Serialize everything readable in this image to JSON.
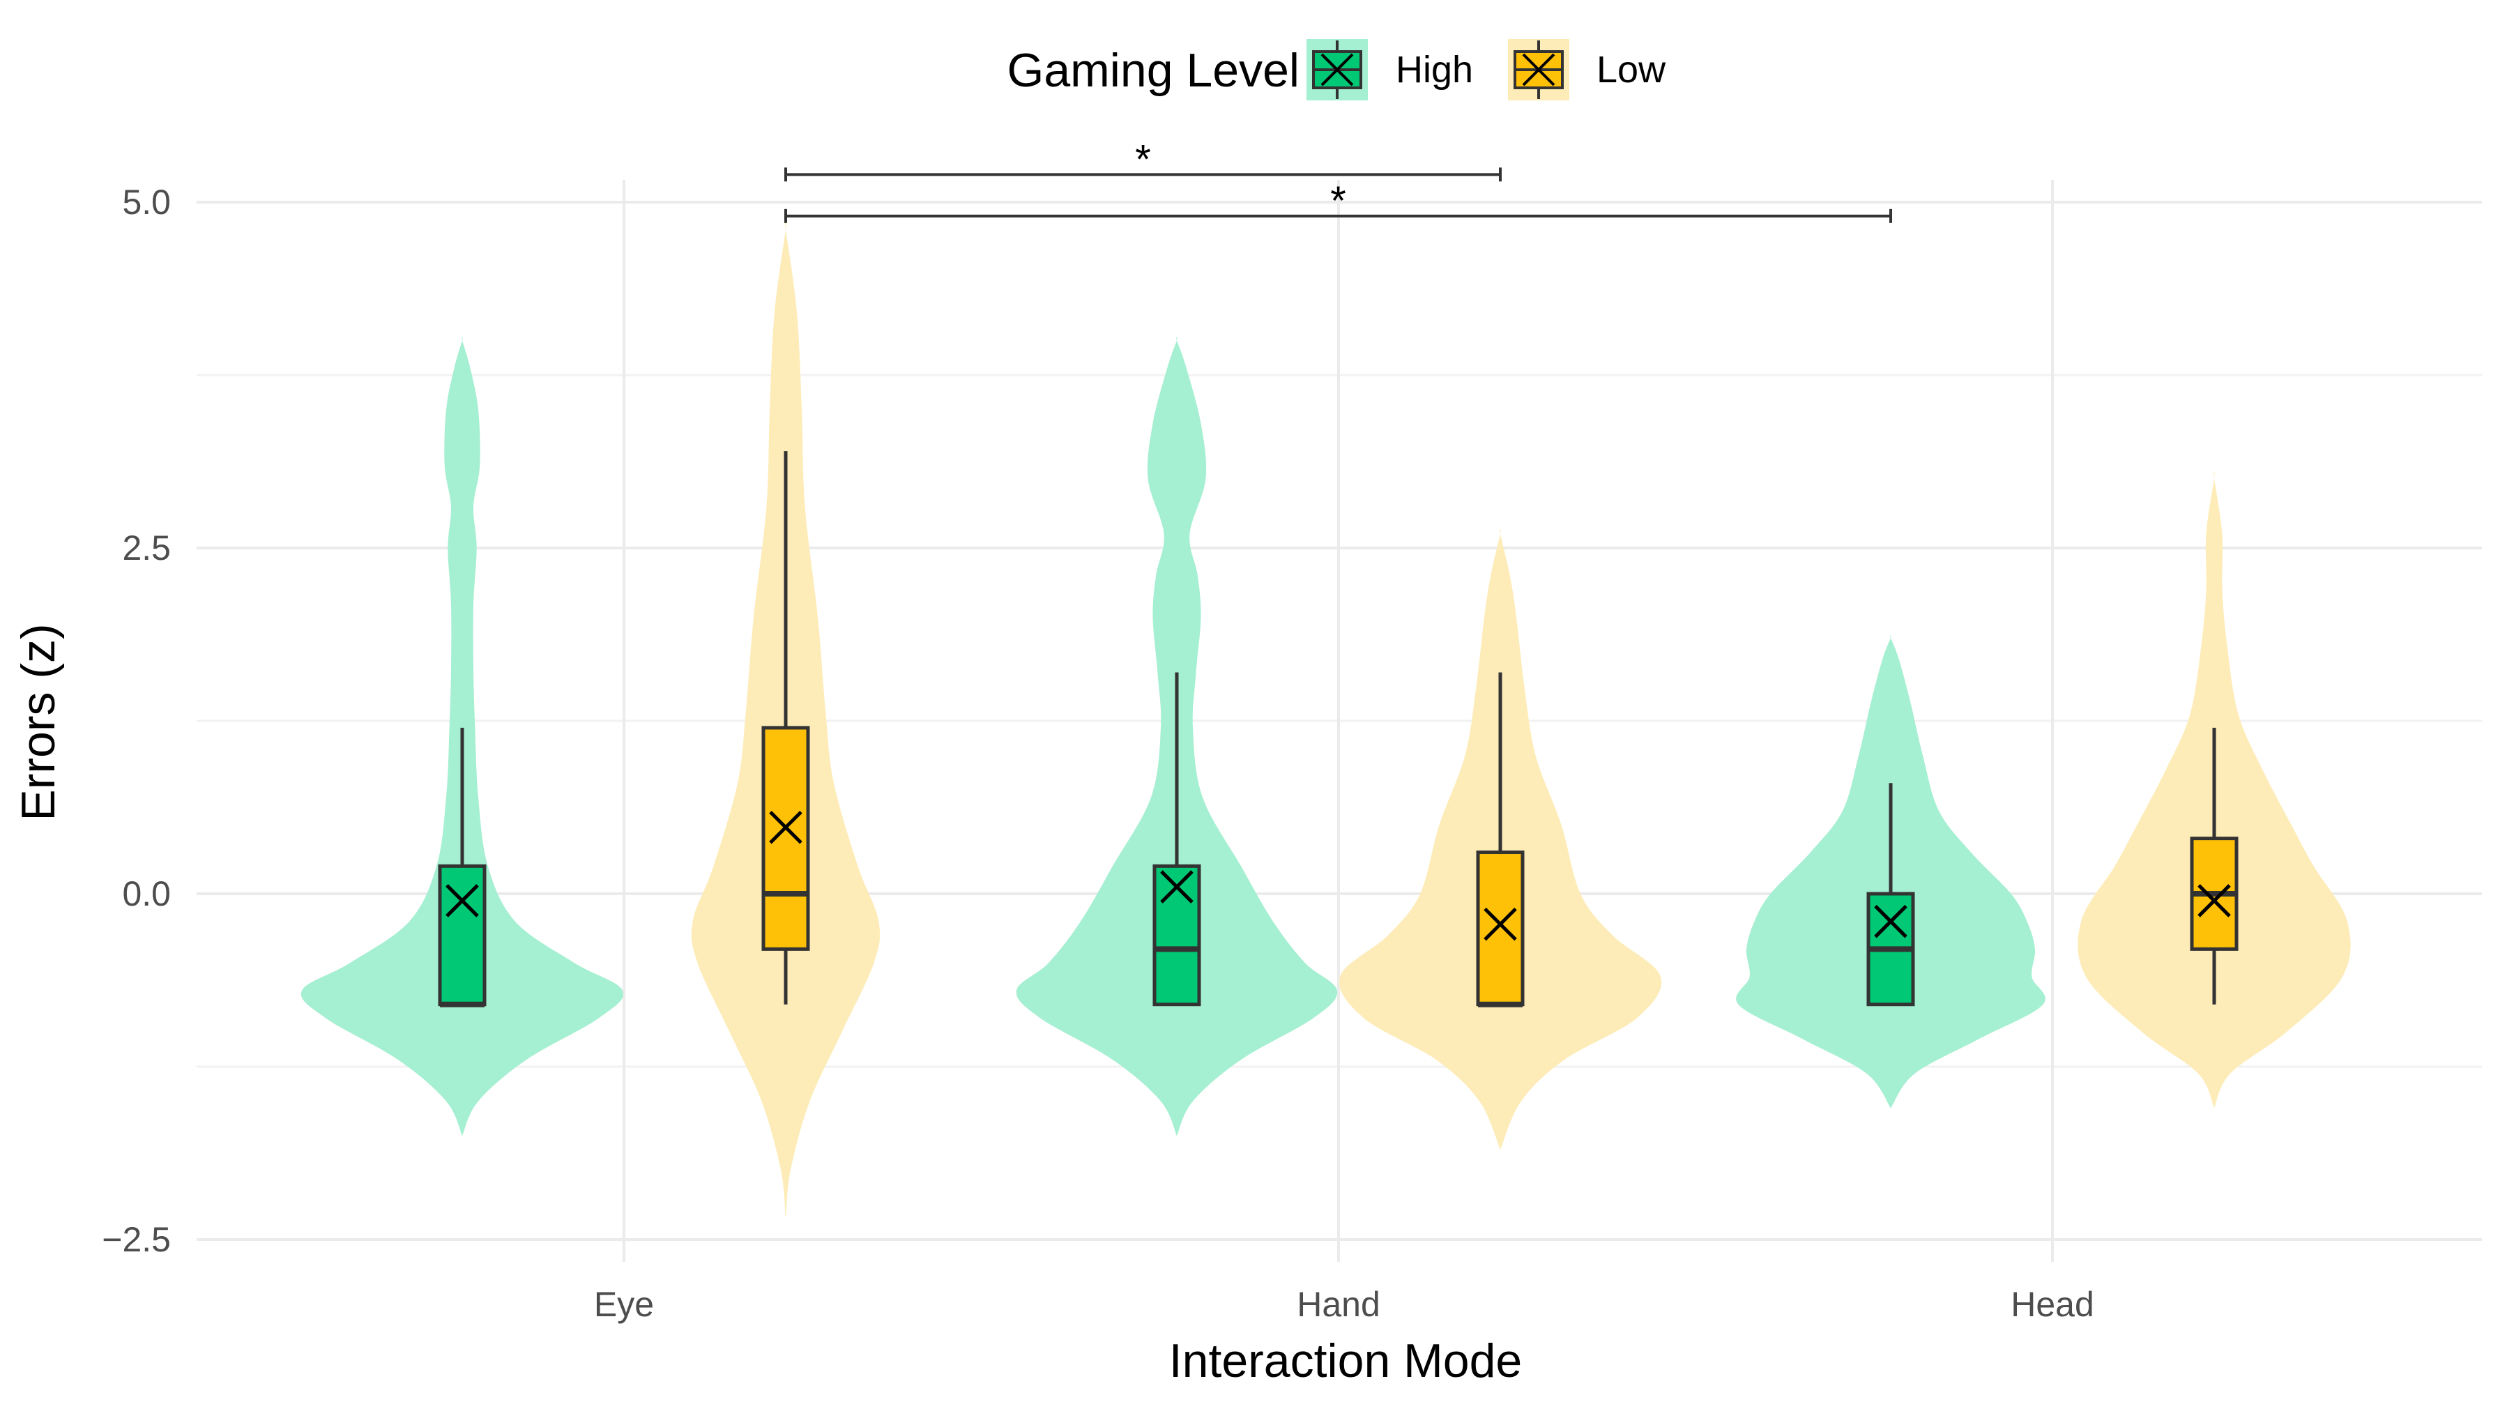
{
  "chart_data": {
    "type": "violin",
    "title": "",
    "xlabel": "Interaction Mode",
    "ylabel": "Errors (z)",
    "categories": [
      "Eye",
      "Hand",
      "Head"
    ],
    "ylim": [
      -2.5,
      5.0
    ],
    "yticks": [
      -2.5,
      0.0,
      2.5,
      5.0
    ],
    "ytick_labels": [
      "−2.5",
      "0.0",
      "2.5",
      "5.0"
    ],
    "grid": true,
    "legend": {
      "title": "Gaming Level",
      "placement": "top",
      "entries": [
        "High",
        "Low"
      ]
    },
    "colors": {
      "High_box": "#00c875",
      "High_violin": "#a5efd2",
      "Low_box": "#ffc107",
      "Low_violin": "#fdecb7"
    },
    "series": [
      {
        "name": "High",
        "boxes": [
          {
            "category": "Eye",
            "min": -0.8,
            "q1": -0.8,
            "median": -0.8,
            "q3": 0.2,
            "max": 1.2,
            "mean": -0.05
          },
          {
            "category": "Hand",
            "min": -0.8,
            "q1": -0.8,
            "median": -0.4,
            "q3": 0.2,
            "max": 1.6,
            "mean": 0.05
          },
          {
            "category": "Head",
            "min": -0.8,
            "q1": -0.8,
            "median": -0.4,
            "q3": 0.0,
            "max": 0.8,
            "mean": -0.2
          }
        ],
        "violins": [
          {
            "category": "Eye",
            "y": [
              -1.75,
              -1.5,
              -1.2,
              -0.9,
              -0.7,
              -0.5,
              -0.2,
              0.2,
              0.7,
              1.2,
              1.6,
              2.1,
              2.5,
              2.8,
              3.1,
              3.5,
              3.8,
              4.0
            ],
            "w": [
              0,
              0.1,
              0.4,
              0.85,
              1.0,
              0.7,
              0.33,
              0.16,
              0.1,
              0.08,
              0.07,
              0.07,
              0.09,
              0.07,
              0.11,
              0.1,
              0.05,
              0
            ]
          },
          {
            "category": "Hand",
            "y": [
              -1.75,
              -1.5,
              -1.2,
              -0.9,
              -0.7,
              -0.5,
              -0.2,
              0.2,
              0.7,
              1.2,
              1.6,
              2.0,
              2.3,
              2.6,
              3.0,
              3.4,
              3.8,
              4.0
            ],
            "w": [
              0,
              0.1,
              0.4,
              0.85,
              1.0,
              0.8,
              0.6,
              0.4,
              0.16,
              0.1,
              0.12,
              0.15,
              0.13,
              0.08,
              0.18,
              0.15,
              0.06,
              0
            ]
          },
          {
            "category": "Head",
            "y": [
              -1.55,
              -1.3,
              -1.05,
              -0.8,
              -0.6,
              -0.4,
              -0.2,
              0.0,
              0.3,
              0.6,
              1.0,
              1.4,
              1.7,
              1.85
            ],
            "w": [
              0,
              0.15,
              0.55,
              0.95,
              0.88,
              0.9,
              0.85,
              0.75,
              0.5,
              0.3,
              0.2,
              0.12,
              0.05,
              0
            ]
          }
        ]
      },
      {
        "name": "Low",
        "boxes": [
          {
            "category": "Eye",
            "min": -0.8,
            "q1": -0.4,
            "median": 0.0,
            "q3": 1.2,
            "max": 3.2,
            "mean": 0.48
          },
          {
            "category": "Hand",
            "min": -0.8,
            "q1": -0.8,
            "median": -0.8,
            "q3": 0.3,
            "max": 1.6,
            "mean": -0.22
          },
          {
            "category": "Head",
            "min": -0.8,
            "q1": -0.4,
            "median": 0.0,
            "q3": 0.4,
            "max": 1.2,
            "mean": -0.05
          }
        ],
        "violins": [
          {
            "category": "Eye",
            "y": [
              -2.35,
              -2.0,
              -1.5,
              -1.0,
              -0.5,
              -0.2,
              0.2,
              0.8,
              1.3,
              2.0,
              2.8,
              3.5,
              4.2,
              4.8
            ],
            "w": [
              0,
              0.03,
              0.15,
              0.35,
              0.55,
              0.58,
              0.45,
              0.3,
              0.25,
              0.2,
              0.12,
              0.1,
              0.07,
              0
            ]
          },
          {
            "category": "Hand",
            "y": [
              -1.85,
              -1.5,
              -1.2,
              -0.9,
              -0.6,
              -0.3,
              0.0,
              0.5,
              1.0,
              1.5,
              2.0,
              2.3,
              2.6
            ],
            "w": [
              0,
              0.13,
              0.4,
              0.85,
              1.0,
              0.7,
              0.5,
              0.38,
              0.22,
              0.15,
              0.1,
              0.06,
              0
            ]
          },
          {
            "category": "Head",
            "y": [
              -1.55,
              -1.3,
              -1.0,
              -0.6,
              -0.2,
              0.2,
              0.5,
              0.9,
              1.3,
              1.8,
              2.2,
              2.6,
              3.0
            ],
            "w": [
              0,
              0.1,
              0.45,
              0.8,
              0.83,
              0.62,
              0.48,
              0.3,
              0.15,
              0.08,
              0.05,
              0.05,
              0
            ]
          }
        ]
      }
    ],
    "annotations": [
      {
        "text": "*",
        "from": "Eye-Low",
        "to": "Hand-Low",
        "y": 5.2
      },
      {
        "text": "*",
        "from": "Eye-Low",
        "to": "Head-High",
        "y": 4.9
      }
    ]
  }
}
